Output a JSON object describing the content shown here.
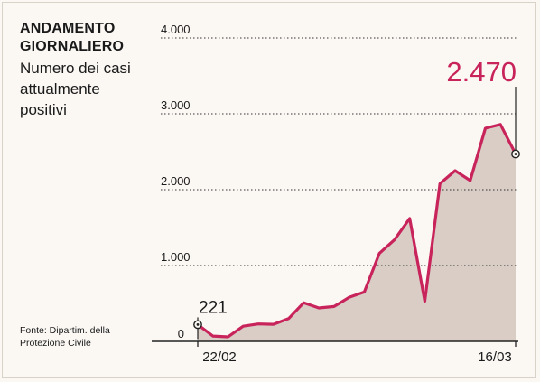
{
  "title": "ANDAMENTO GIORNALIERO",
  "subtitle": "Numero dei casi attualmente positivi",
  "source": "Fonte: Dipartim. della Protezione Civile",
  "colors": {
    "line": "#c8245b",
    "area": "#d9cdc5",
    "grid": "#333333",
    "text": "#1a1a1a",
    "highlight": "#c8245b"
  },
  "chart_data": {
    "type": "area",
    "title": "ANDAMENTO GIORNALIERO",
    "subtitle": "Numero dei casi attualmente positivi",
    "ylim": [
      0,
      4000
    ],
    "y_ticks": [
      {
        "value": 0,
        "label": "0"
      },
      {
        "value": 1000,
        "label": "1.000"
      },
      {
        "value": 2000,
        "label": "2.000"
      },
      {
        "value": 3000,
        "label": "3.000"
      },
      {
        "value": 4000,
        "label": "4.000"
      }
    ],
    "x_labels": [
      {
        "index": 0,
        "label": "22/02"
      },
      {
        "index": 23,
        "label": "16/03"
      }
    ],
    "grid": "dotted-horizontal",
    "series": [
      {
        "values": [
          221,
          70,
          60,
          200,
          230,
          225,
          300,
          510,
          440,
          460,
          580,
          650,
          1160,
          1340,
          1620,
          530,
          2080,
          2250,
          2120,
          2810,
          2860,
          2470
        ]
      }
    ],
    "annotations": [
      {
        "index": 0,
        "value": 221,
        "label": "221"
      },
      {
        "index": 21,
        "value": 2470,
        "label": "2.470"
      }
    ]
  }
}
